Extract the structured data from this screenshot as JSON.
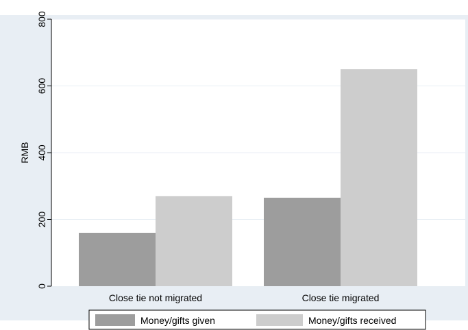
{
  "chart_data": {
    "type": "bar",
    "categories": [
      "Close tie not migrated",
      "Close tie migrated"
    ],
    "series": [
      {
        "name": "Money/gifts given",
        "values": [
          160,
          265
        ],
        "color": "#9d9d9d"
      },
      {
        "name": "Money/gifts received",
        "values": [
          270,
          650
        ],
        "color": "#cdcdcd"
      }
    ],
    "ylabel": "RMB",
    "ylim": [
      0,
      800
    ],
    "yticks": [
      0,
      200,
      400,
      600,
      800
    ],
    "grid": true,
    "legend_position": "bottom"
  },
  "colors": {
    "background": "#e8eef4",
    "plot_area": "#ffffff",
    "gridline": "#e8eef4"
  }
}
